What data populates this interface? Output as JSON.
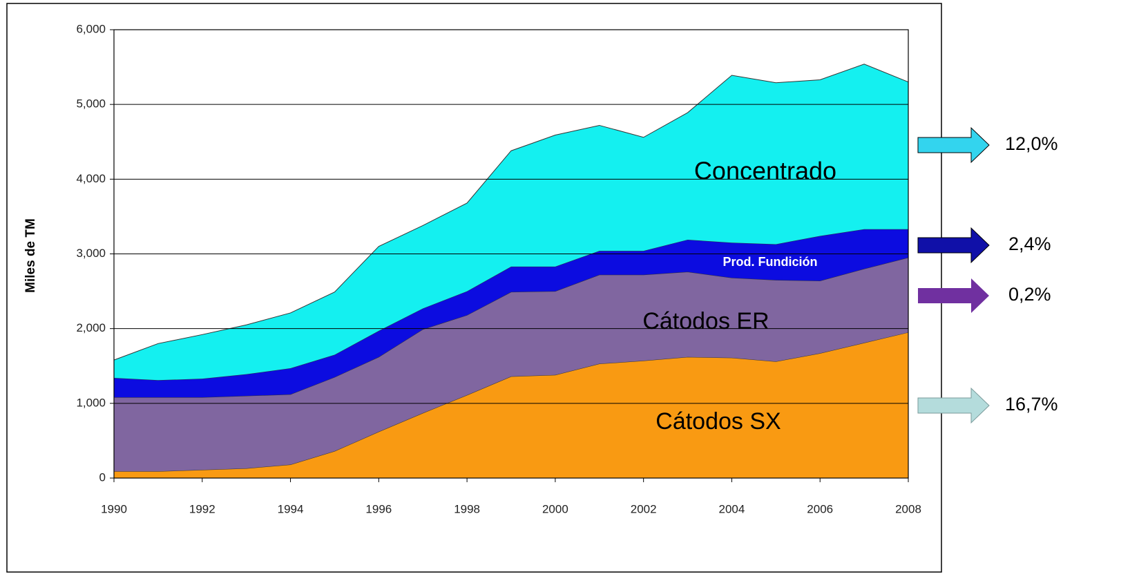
{
  "chart_data": {
    "type": "stacked_area",
    "y_label": "Miles de TM",
    "x": [
      1990,
      1991,
      1992,
      1993,
      1994,
      1995,
      1996,
      1997,
      1998,
      1999,
      2000,
      2001,
      2002,
      2003,
      2004,
      2005,
      2006,
      2007,
      2008
    ],
    "xlim": [
      1990,
      2008
    ],
    "xticks": [
      1990,
      1992,
      1994,
      1996,
      1998,
      2000,
      2002,
      2004,
      2006,
      2008
    ],
    "ylim": [
      0,
      6000
    ],
    "yticks": [
      0,
      {
        "value": 1000,
        "label": "1,000"
      },
      {
        "value": 2000,
        "label": "2,000"
      },
      {
        "value": 3000,
        "label": "3,000"
      },
      {
        "value": 4000,
        "label": "4,000"
      },
      {
        "value": 5000,
        "label": "5,000"
      },
      {
        "value": 6000,
        "label": "6,000"
      }
    ],
    "grid": true,
    "series": [
      {
        "name": "Cátodos SX",
        "color": "#f99a12",
        "values": [
          90,
          90,
          110,
          130,
          180,
          360,
          620,
          870,
          1110,
          1360,
          1380,
          1530,
          1570,
          1620,
          1610,
          1560,
          1670,
          1810,
          1950
        ]
      },
      {
        "name": "Cátodos ER",
        "color": "#8066a0",
        "values": [
          990,
          990,
          970,
          970,
          940,
          990,
          1000,
          1120,
          1070,
          1130,
          1120,
          1190,
          1150,
          1140,
          1070,
          1090,
          970,
          990,
          1000
        ]
      },
      {
        "name": "Prod. Fundición",
        "color": "#0c0ce0",
        "values": [
          260,
          230,
          250,
          290,
          350,
          300,
          350,
          280,
          320,
          340,
          330,
          320,
          320,
          430,
          470,
          480,
          600,
          530,
          380
        ]
      },
      {
        "name": "Concentrado",
        "color": "#14f0f0",
        "values": [
          240,
          490,
          590,
          660,
          740,
          840,
          1130,
          1110,
          1180,
          1550,
          1760,
          1680,
          1520,
          1700,
          2240,
          2160,
          2090,
          2210,
          1970
        ]
      }
    ],
    "annotations": [
      {
        "text": "12,0%",
        "color": "#33d4ee"
      },
      {
        "text": "2,4%",
        "color": "#1010a8"
      },
      {
        "text": "0,2%",
        "color": "#7030a0"
      },
      {
        "text": "16,7%",
        "color": "#b4dcdc"
      }
    ]
  }
}
